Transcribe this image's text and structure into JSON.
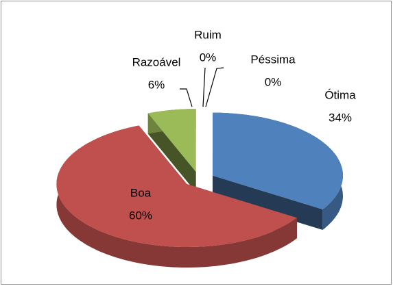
{
  "chart_data": {
    "type": "pie3d",
    "categories": [
      "Ótima",
      "Boa",
      "Razoável",
      "Ruim",
      "Péssima"
    ],
    "values": [
      34,
      60,
      6,
      0,
      0
    ],
    "value_labels": [
      "34%",
      "60%",
      "6%",
      "0%",
      "0%"
    ],
    "colors": [
      "#4f81bd",
      "#c0504d",
      "#9bbb59",
      "#8064a2",
      "#4bacc6"
    ]
  }
}
